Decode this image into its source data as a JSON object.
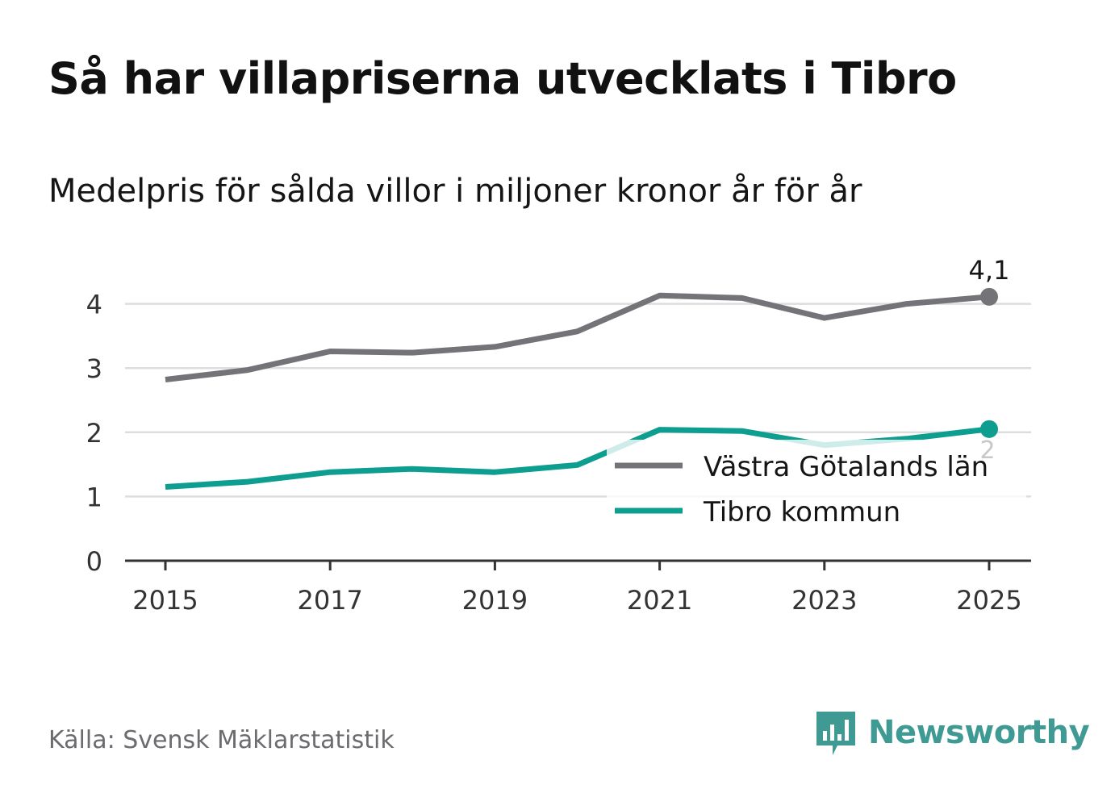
{
  "header": {
    "title": "Så har villapriserna utvecklats i Tibro",
    "subtitle": "Medelpris för sålda villor i miljoner kronor år för år"
  },
  "footer": {
    "source": "Källa: Svensk Mäklarstatistik",
    "brand": "Newsworthy"
  },
  "colors": {
    "vastra": "#737378",
    "tibro": "#0e9e90",
    "grid": "#dddddd",
    "axis": "#333333",
    "brand": "#3f9a93"
  },
  "chart_data": {
    "type": "line",
    "title": "Så har villapriserna utvecklats i Tibro",
    "subtitle": "Medelpris för sålda villor i miljoner kronor år för år",
    "xlabel": "",
    "ylabel": "",
    "x": [
      2015,
      2016,
      2017,
      2018,
      2019,
      2020,
      2021,
      2022,
      2023,
      2024,
      2025
    ],
    "x_ticks": [
      "2015",
      "2017",
      "2019",
      "2021",
      "2023",
      "2025"
    ],
    "y_ticks": [
      "0",
      "1",
      "2",
      "3",
      "4"
    ],
    "ylim": [
      0,
      4.4
    ],
    "grid": true,
    "legend_position": "bottom-right",
    "series": [
      {
        "name": "Västra Götalands län",
        "values": [
          2.82,
          2.97,
          3.26,
          3.24,
          3.33,
          3.57,
          4.13,
          4.09,
          3.78,
          4.0,
          4.11
        ],
        "end_label": "4,1"
      },
      {
        "name": "Tibro kommun",
        "values": [
          1.15,
          1.23,
          1.38,
          1.43,
          1.38,
          1.49,
          2.04,
          2.02,
          1.8,
          1.9,
          2.05
        ],
        "end_label": "2"
      }
    ]
  }
}
